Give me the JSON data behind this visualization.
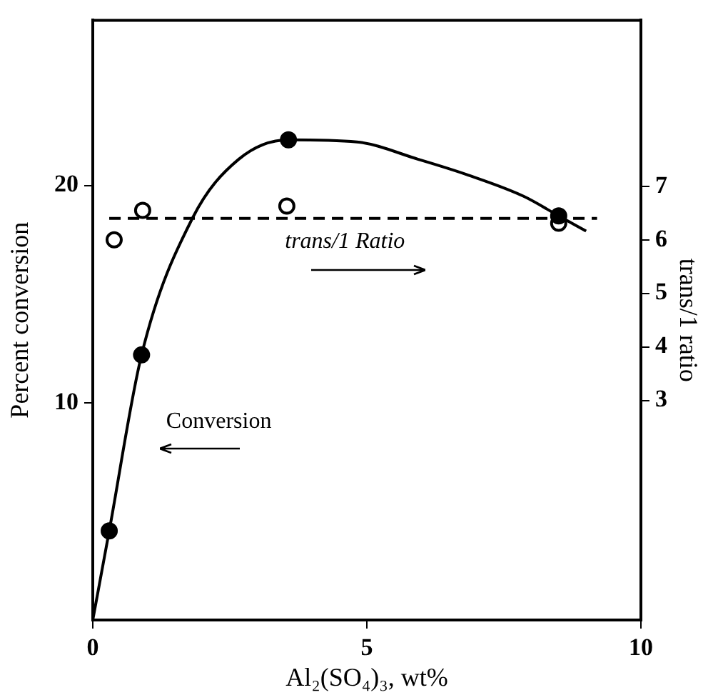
{
  "chart_data": {
    "type": "scatter",
    "xlabel": "Al₂(SO₄)₃, wt%",
    "ylabel": "Percent conversion",
    "y2label": "trans/1 ratio",
    "xlim": [
      0,
      10
    ],
    "xticks": [
      0,
      5,
      10
    ],
    "ylim": [
      0,
      27.6
    ],
    "yticks": [
      10,
      20
    ],
    "y2lim": [
      -1.1,
      10.1
    ],
    "y2ticks": [
      3,
      4,
      5,
      6,
      7
    ],
    "grid": false,
    "legend": false,
    "series": [
      {
        "x": [
          0.3,
          0.89,
          3.57,
          8.5
        ],
        "values": [
          4.1,
          12.2,
          22.1,
          18.6
        ],
        "color": "#000000",
        "marker": "circle"
      },
      {
        "type": "line",
        "x": [
          0,
          0.3,
          0.89,
          1.82,
          2.66,
          3.57,
          4.82,
          5.94,
          6.82,
          7.86,
          8.5,
          9.0
        ],
        "values": [
          0,
          4.1,
          12.2,
          18.5,
          21.2,
          22.1,
          22.0,
          21.2,
          20.5,
          19.5,
          18.6,
          17.9
        ],
        "color": "#000000",
        "marker": "none",
        "line_style": "solid"
      },
      {
        "axis": "y2",
        "x": [
          0.39,
          0.91,
          3.54,
          8.5
        ],
        "values": [
          6.0,
          6.55,
          6.63,
          6.31
        ],
        "color": "#000000",
        "marker": "circle"
      },
      {
        "type": "line",
        "axis": "y2",
        "x": [
          0.3,
          9.2
        ],
        "values": [
          6.4,
          6.4
        ],
        "color": "#000000",
        "marker": "none",
        "line_style": "dashed"
      }
    ],
    "annotations": [
      "Conversion",
      "trans/1 Ratio"
    ]
  }
}
